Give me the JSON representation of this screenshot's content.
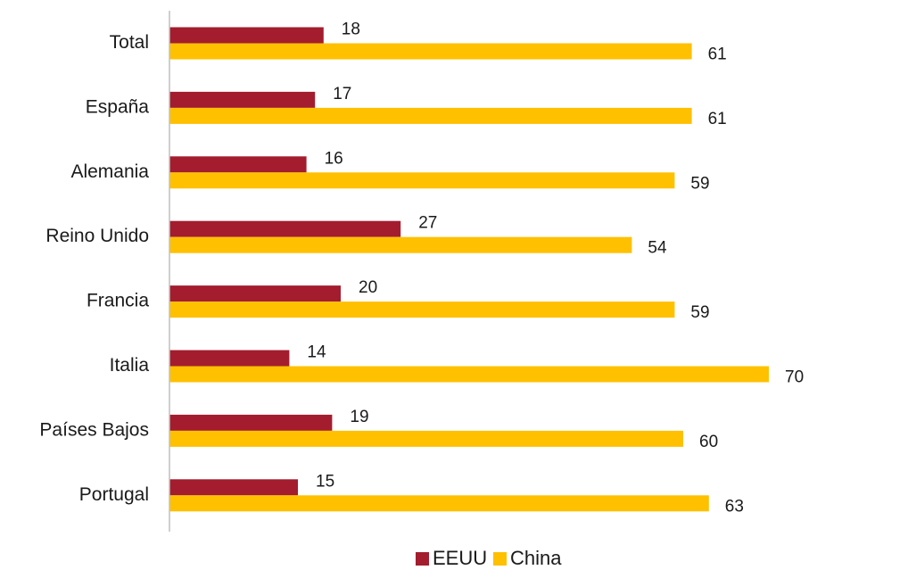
{
  "chart_data": {
    "type": "bar",
    "orientation": "horizontal",
    "categories": [
      "Total",
      "España",
      "Alemania",
      "Reino Unido",
      "Francia",
      "Italia",
      "Países Bajos",
      "Portugal"
    ],
    "series": [
      {
        "name": "EEUU",
        "color": "#a31d2e",
        "values": [
          18,
          17,
          16,
          27,
          20,
          14,
          19,
          15
        ]
      },
      {
        "name": "China",
        "color": "#ffc000",
        "values": [
          61,
          61,
          59,
          54,
          59,
          70,
          60,
          63
        ]
      }
    ],
    "title": "",
    "xlabel": "",
    "ylabel": "",
    "xlim": [
      0,
      70
    ],
    "grid": false,
    "legend": "bottom",
    "data_labels": true
  }
}
